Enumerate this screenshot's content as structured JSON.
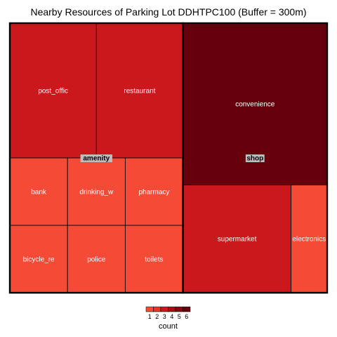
{
  "chart_data": {
    "type": "treemap",
    "title": "Nearby Resources of Parking Lot DDHTPC100 (Buffer = 300m)",
    "groups": [
      {
        "name": "amenity",
        "items": [
          {
            "label": "post_offic",
            "count": 3
          },
          {
            "label": "restaurant",
            "count": 3
          },
          {
            "label": "bank",
            "count": 1
          },
          {
            "label": "drinking_w",
            "count": 1
          },
          {
            "label": "pharmacy",
            "count": 1
          },
          {
            "label": "bicycle_re",
            "count": 1
          },
          {
            "label": "police",
            "count": 1
          },
          {
            "label": "toilets",
            "count": 1
          }
        ]
      },
      {
        "name": "shop",
        "items": [
          {
            "label": "convenience",
            "count": 6
          },
          {
            "label": "supermarket",
            "count": 3
          },
          {
            "label": "electronics",
            "count": 1
          }
        ]
      }
    ],
    "legend": {
      "title": "count",
      "ticks": [
        "1",
        "2",
        "3",
        "4",
        "5",
        "6"
      ],
      "colors": [
        "#f44a36",
        "#e83329",
        "#cb181d",
        "#a60f15",
        "#860811",
        "#67000d"
      ]
    }
  }
}
